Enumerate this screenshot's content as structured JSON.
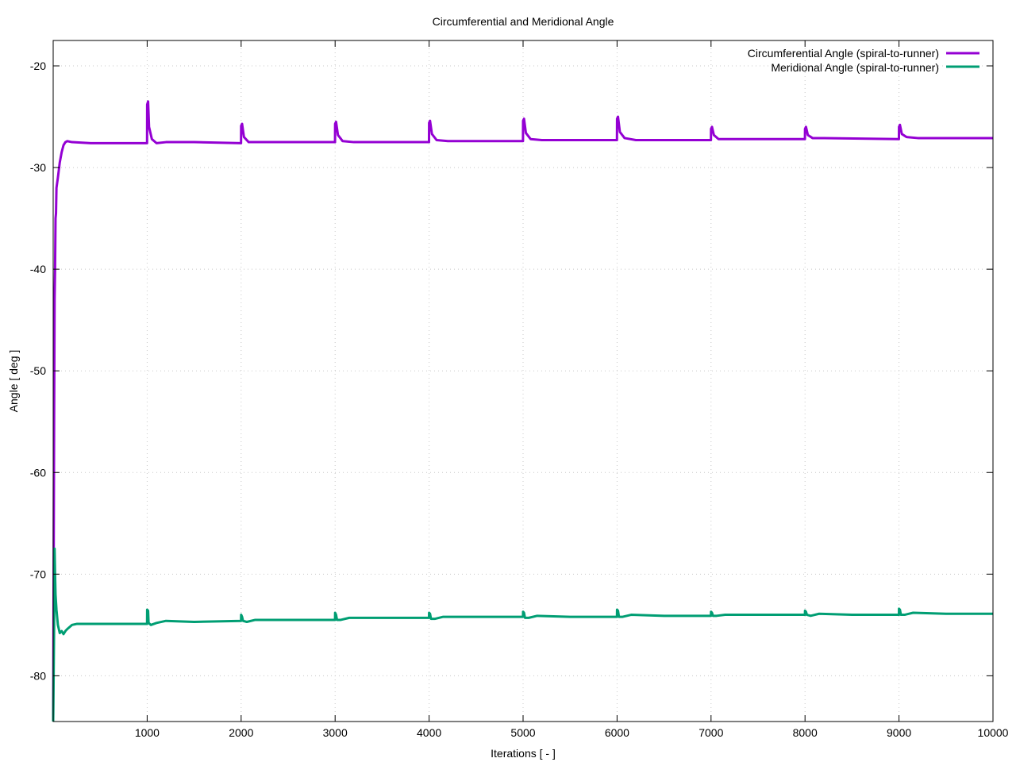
{
  "chart_data": {
    "type": "line",
    "title": "Circumferential and Meridional Angle",
    "xlabel": "Iterations [ - ]",
    "ylabel": "Angle [ deg ]",
    "xlim": [
      0,
      10000
    ],
    "ylim": [
      -84.5,
      -17.5
    ],
    "xticks": [
      1000,
      2000,
      3000,
      4000,
      5000,
      6000,
      7000,
      8000,
      9000,
      10000
    ],
    "yticks": [
      -20,
      -30,
      -40,
      -50,
      -60,
      -70,
      -80
    ],
    "grid": true,
    "legend_position": "top-right",
    "series": [
      {
        "name": "Circumferential Angle (spiral-to-runner)",
        "color": "#9400d3",
        "points": [
          [
            0,
            -84.5
          ],
          [
            5,
            -70
          ],
          [
            10,
            -55
          ],
          [
            15,
            -43
          ],
          [
            20,
            -40
          ],
          [
            25,
            -35
          ],
          [
            30,
            -34.5
          ],
          [
            35,
            -32
          ],
          [
            50,
            -31
          ],
          [
            70,
            -29.5
          ],
          [
            90,
            -28.5
          ],
          [
            110,
            -27.8
          ],
          [
            130,
            -27.5
          ],
          [
            150,
            -27.4
          ],
          [
            200,
            -27.5
          ],
          [
            400,
            -27.6
          ],
          [
            700,
            -27.6
          ],
          [
            999,
            -27.6
          ],
          [
            1000,
            -23.8
          ],
          [
            1010,
            -23.5
          ],
          [
            1020,
            -26.0
          ],
          [
            1050,
            -27.2
          ],
          [
            1100,
            -27.6
          ],
          [
            1200,
            -27.5
          ],
          [
            1500,
            -27.5
          ],
          [
            1999,
            -27.6
          ],
          [
            2000,
            -25.9
          ],
          [
            2010,
            -25.7
          ],
          [
            2030,
            -27.0
          ],
          [
            2080,
            -27.5
          ],
          [
            2200,
            -27.5
          ],
          [
            2999,
            -27.5
          ],
          [
            3000,
            -25.7
          ],
          [
            3010,
            -25.5
          ],
          [
            3030,
            -26.8
          ],
          [
            3080,
            -27.4
          ],
          [
            3200,
            -27.5
          ],
          [
            3999,
            -27.5
          ],
          [
            4000,
            -25.6
          ],
          [
            4010,
            -25.4
          ],
          [
            4030,
            -26.7
          ],
          [
            4080,
            -27.3
          ],
          [
            4200,
            -27.4
          ],
          [
            4999,
            -27.4
          ],
          [
            5000,
            -25.4
          ],
          [
            5010,
            -25.2
          ],
          [
            5030,
            -26.6
          ],
          [
            5080,
            -27.2
          ],
          [
            5200,
            -27.3
          ],
          [
            5999,
            -27.3
          ],
          [
            6000,
            -25.2
          ],
          [
            6010,
            -25.0
          ],
          [
            6030,
            -26.5
          ],
          [
            6080,
            -27.1
          ],
          [
            6200,
            -27.3
          ],
          [
            6999,
            -27.3
          ],
          [
            7000,
            -26.2
          ],
          [
            7010,
            -26.0
          ],
          [
            7030,
            -26.8
          ],
          [
            7080,
            -27.2
          ],
          [
            7200,
            -27.2
          ],
          [
            7999,
            -27.2
          ],
          [
            8000,
            -26.2
          ],
          [
            8010,
            -26.0
          ],
          [
            8030,
            -26.8
          ],
          [
            8080,
            -27.1
          ],
          [
            8200,
            -27.1
          ],
          [
            8999,
            -27.2
          ],
          [
            9000,
            -26.0
          ],
          [
            9010,
            -25.8
          ],
          [
            9030,
            -26.7
          ],
          [
            9080,
            -27.0
          ],
          [
            9200,
            -27.1
          ],
          [
            10000,
            -27.1
          ]
        ]
      },
      {
        "name": "Meridional Angle (spiral-to-runner)",
        "color": "#009e73",
        "points": [
          [
            0,
            -84.5
          ],
          [
            5,
            -80
          ],
          [
            10,
            -75
          ],
          [
            15,
            -67.5
          ],
          [
            20,
            -70
          ],
          [
            25,
            -72
          ],
          [
            35,
            -73.5
          ],
          [
            50,
            -75
          ],
          [
            70,
            -75.8
          ],
          [
            90,
            -75.6
          ],
          [
            110,
            -75.9
          ],
          [
            130,
            -75.6
          ],
          [
            150,
            -75.4
          ],
          [
            200,
            -75.0
          ],
          [
            250,
            -74.9
          ],
          [
            400,
            -74.9
          ],
          [
            700,
            -74.9
          ],
          [
            999,
            -74.9
          ],
          [
            1000,
            -73.5
          ],
          [
            1010,
            -73.6
          ],
          [
            1015,
            -74.8
          ],
          [
            1040,
            -75.0
          ],
          [
            1100,
            -74.8
          ],
          [
            1200,
            -74.6
          ],
          [
            1500,
            -74.7
          ],
          [
            1999,
            -74.6
          ],
          [
            2000,
            -74.0
          ],
          [
            2010,
            -74.2
          ],
          [
            2020,
            -74.6
          ],
          [
            2060,
            -74.7
          ],
          [
            2150,
            -74.5
          ],
          [
            2500,
            -74.5
          ],
          [
            2999,
            -74.5
          ],
          [
            3000,
            -73.8
          ],
          [
            3010,
            -74.0
          ],
          [
            3020,
            -74.5
          ],
          [
            3060,
            -74.5
          ],
          [
            3150,
            -74.3
          ],
          [
            3500,
            -74.3
          ],
          [
            3999,
            -74.3
          ],
          [
            4000,
            -73.8
          ],
          [
            4010,
            -73.9
          ],
          [
            4020,
            -74.4
          ],
          [
            4060,
            -74.4
          ],
          [
            4150,
            -74.2
          ],
          [
            4500,
            -74.2
          ],
          [
            4999,
            -74.2
          ],
          [
            5000,
            -73.7
          ],
          [
            5010,
            -73.8
          ],
          [
            5020,
            -74.3
          ],
          [
            5060,
            -74.3
          ],
          [
            5150,
            -74.1
          ],
          [
            5500,
            -74.2
          ],
          [
            5999,
            -74.2
          ],
          [
            6000,
            -73.5
          ],
          [
            6010,
            -73.6
          ],
          [
            6020,
            -74.2
          ],
          [
            6060,
            -74.2
          ],
          [
            6150,
            -74.0
          ],
          [
            6500,
            -74.1
          ],
          [
            6999,
            -74.1
          ],
          [
            7000,
            -73.7
          ],
          [
            7010,
            -73.8
          ],
          [
            7020,
            -74.1
          ],
          [
            7060,
            -74.1
          ],
          [
            7150,
            -74.0
          ],
          [
            7500,
            -74.0
          ],
          [
            7999,
            -74.0
          ],
          [
            8000,
            -73.6
          ],
          [
            8010,
            -73.7
          ],
          [
            8020,
            -74.0
          ],
          [
            8060,
            -74.1
          ],
          [
            8150,
            -73.9
          ],
          [
            8500,
            -74.0
          ],
          [
            8999,
            -74.0
          ],
          [
            9000,
            -73.4
          ],
          [
            9010,
            -73.5
          ],
          [
            9020,
            -74.0
          ],
          [
            9060,
            -74.0
          ],
          [
            9150,
            -73.8
          ],
          [
            9500,
            -73.9
          ],
          [
            10000,
            -73.9
          ]
        ]
      }
    ]
  }
}
